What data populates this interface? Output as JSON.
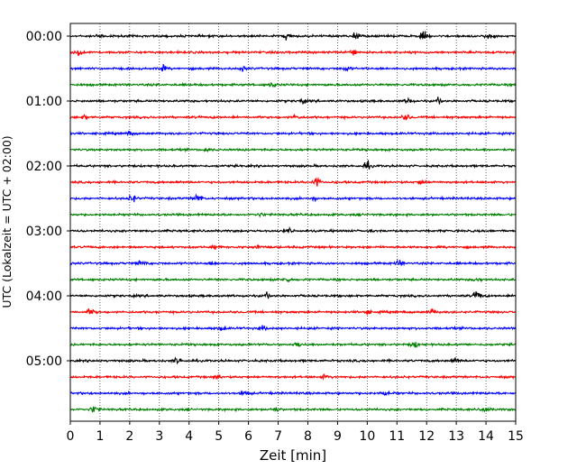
{
  "chart_data": {
    "type": "line",
    "title": "",
    "xlabel": "Zeit  [min]",
    "ylabel": "UTC (Lokalzeit = UTC + 02:00)",
    "xlim": [
      0,
      15
    ],
    "x_ticks": [
      "0",
      "1",
      "2",
      "3",
      "4",
      "5",
      "6",
      "7",
      "8",
      "9",
      "10",
      "11",
      "12",
      "13",
      "14",
      "15"
    ],
    "y_ticks": [
      "00:00",
      "01:00",
      "02:00",
      "03:00",
      "04:00",
      "05:00"
    ],
    "grid": "vertical-dotted",
    "trace_interval_min": 15,
    "colors": [
      "#000000",
      "#ff0000",
      "#0000ff",
      "#008000"
    ],
    "traces": [
      {
        "start": "00:00",
        "color": "#000000",
        "bursts": [
          [
            1.0,
            0.5
          ],
          [
            7.3,
            0.7
          ],
          [
            9.6,
            0.8
          ],
          [
            11.9,
            0.8
          ],
          [
            14.1,
            0.6
          ]
        ]
      },
      {
        "start": "00:15",
        "color": "#ff0000",
        "bursts": [
          [
            0.3,
            0.6
          ],
          [
            9.5,
            0.7
          ]
        ]
      },
      {
        "start": "00:30",
        "color": "#0000ff",
        "bursts": [
          [
            3.1,
            0.6
          ],
          [
            5.8,
            0.4
          ],
          [
            9.3,
            0.5
          ]
        ]
      },
      {
        "start": "00:45",
        "color": "#008000",
        "bursts": [
          [
            6.8,
            0.4
          ]
        ]
      },
      {
        "start": "01:00",
        "color": "#000000",
        "bursts": [
          [
            7.8,
            0.4
          ],
          [
            11.4,
            0.6
          ],
          [
            12.4,
            0.5
          ]
        ]
      },
      {
        "start": "01:15",
        "color": "#ff0000",
        "bursts": [
          [
            0.5,
            0.4
          ],
          [
            7.6,
            0.4
          ],
          [
            11.3,
            0.6
          ]
        ]
      },
      {
        "start": "01:30",
        "color": "#0000ff",
        "bursts": [
          [
            2.0,
            0.4
          ]
        ]
      },
      {
        "start": "01:45",
        "color": "#008000",
        "bursts": [
          [
            4.6,
            0.3
          ]
        ]
      },
      {
        "start": "02:00",
        "color": "#000000",
        "bursts": [
          [
            10.0,
            0.8
          ]
        ]
      },
      {
        "start": "02:15",
        "color": "#ff0000",
        "bursts": [
          [
            8.3,
            0.9
          ],
          [
            11.8,
            0.4
          ]
        ]
      },
      {
        "start": "02:30",
        "color": "#0000ff",
        "bursts": [
          [
            2.1,
            0.7
          ],
          [
            4.3,
            0.9
          ],
          [
            8.2,
            0.4
          ]
        ]
      },
      {
        "start": "02:45",
        "color": "#008000",
        "bursts": [
          [
            6.4,
            0.3
          ]
        ]
      },
      {
        "start": "03:00",
        "color": "#000000",
        "bursts": [
          [
            7.4,
            0.4
          ]
        ]
      },
      {
        "start": "03:15",
        "color": "#ff0000",
        "bursts": [
          [
            4.9,
            0.4
          ],
          [
            6.3,
            0.4
          ]
        ]
      },
      {
        "start": "03:30",
        "color": "#0000ff",
        "bursts": [
          [
            2.4,
            0.5
          ],
          [
            4.8,
            0.4
          ],
          [
            11.1,
            0.6
          ]
        ]
      },
      {
        "start": "03:45",
        "color": "#008000",
        "bursts": [
          [
            7.3,
            0.5
          ],
          [
            13.7,
            0.4
          ]
        ]
      },
      {
        "start": "04:00",
        "color": "#000000",
        "bursts": [
          [
            6.6,
            0.5
          ],
          [
            13.7,
            0.9
          ]
        ]
      },
      {
        "start": "04:15",
        "color": "#ff0000",
        "bursts": [
          [
            0.7,
            0.7
          ],
          [
            10.0,
            0.4
          ],
          [
            12.2,
            0.5
          ]
        ]
      },
      {
        "start": "04:30",
        "color": "#0000ff",
        "bursts": [
          [
            5.1,
            0.4
          ],
          [
            6.5,
            0.4
          ]
        ]
      },
      {
        "start": "04:45",
        "color": "#008000",
        "bursts": [
          [
            7.7,
            0.5
          ],
          [
            11.6,
            0.5
          ]
        ]
      },
      {
        "start": "05:00",
        "color": "#000000",
        "bursts": [
          [
            3.6,
            0.6
          ],
          [
            13.0,
            0.5
          ]
        ]
      },
      {
        "start": "05:15",
        "color": "#ff0000",
        "bursts": [
          [
            5.0,
            0.5
          ],
          [
            8.6,
            0.4
          ]
        ]
      },
      {
        "start": "05:30",
        "color": "#0000ff",
        "bursts": [
          [
            5.9,
            0.5
          ],
          [
            10.6,
            0.4
          ]
        ]
      },
      {
        "start": "05:45",
        "color": "#008000",
        "bursts": [
          [
            0.8,
            0.7
          ],
          [
            6.9,
            0.5
          ],
          [
            14.0,
            0.5
          ]
        ]
      }
    ]
  }
}
